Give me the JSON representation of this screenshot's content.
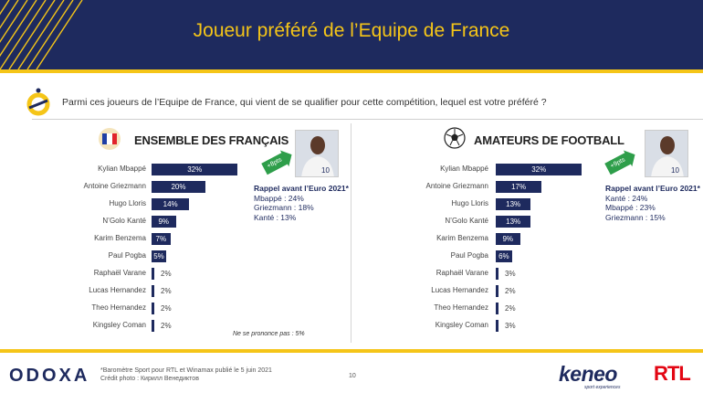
{
  "header": {
    "title": "Joueur préféré de l’Equipe de France"
  },
  "question": "Parmi ces joueurs de l’Equipe de France, qui vient de se qualifier pour cette compétition, lequel est votre préféré ?",
  "colors": {
    "navy": "#1e2a5e",
    "gold": "#f5c518",
    "green": "#2e9e4a",
    "rtl_red": "#e30613"
  },
  "chart_data": [
    {
      "type": "bar",
      "orientation": "horizontal",
      "title": "ENSEMBLE DES FRANÇAIS",
      "icon": "french-flag-icon",
      "categories": [
        "Kylian Mbappé",
        "Antoine Griezmann",
        "Hugo Lloris",
        "N’Golo Kanté",
        "Karim Benzema",
        "Paul Pogba",
        "Raphaël Varane",
        "Lucas Hernandez",
        "Theo Hernandez",
        "Kingsley Coman"
      ],
      "values": [
        32,
        20,
        14,
        9,
        7,
        5,
        2,
        2,
        2,
        2
      ],
      "labels": [
        "32%",
        "20%",
        "14%",
        "9%",
        "7%",
        "5%",
        "2%",
        "2%",
        "2%",
        "2%"
      ],
      "badge": "+8pts",
      "recap": {
        "title": "Rappel avant l’Euro 2021*",
        "lines": [
          "Mbappé : 24%",
          "Griezmann : 18%",
          "Kanté : 13%"
        ]
      },
      "note": "Ne se prononce pas : 5%"
    },
    {
      "type": "bar",
      "orientation": "horizontal",
      "title": "AMATEURS DE FOOTBALL",
      "icon": "soccer-ball-icon",
      "categories": [
        "Kylian Mbappé",
        "Antoine Griezmann",
        "Hugo Lloris",
        "N’Golo Kanté",
        "Karim Benzema",
        "Paul Pogba",
        "Raphaël Varane",
        "Lucas Hernandez",
        "Theo Hernandez",
        "Kingsley Coman"
      ],
      "values": [
        32,
        17,
        13,
        13,
        9,
        6,
        3,
        2,
        2,
        3
      ],
      "labels": [
        "32%",
        "17%",
        "13%",
        "13%",
        "9%",
        "6%",
        "3%",
        "2%",
        "2%",
        "3%"
      ],
      "badge": "+9pts",
      "recap": {
        "title": "Rappel avant l’Euro 2021*",
        "lines": [
          "Kanté : 24%",
          "Mbappé : 23%",
          "Griezmann : 15%"
        ]
      }
    }
  ],
  "footer": {
    "brand": "ODOXA",
    "source_line1": "*Baromètre Sport pour RTL et Winamax publié le 5 juin 2021",
    "source_line2": "Crédit photo : Кирилл Венедиктов",
    "page": "10",
    "keneo": "keneo",
    "keneo_sub": "sport experiences",
    "rtl": "RTL"
  }
}
